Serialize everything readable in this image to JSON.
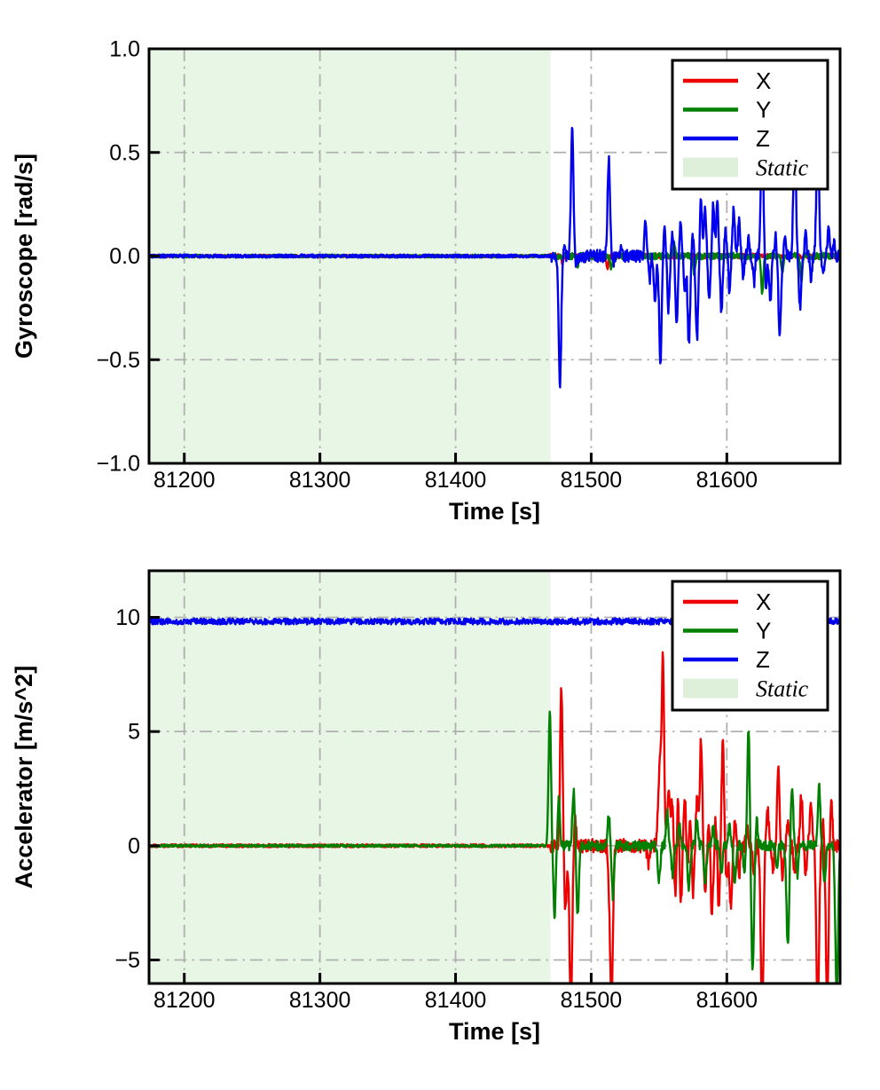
{
  "colors": {
    "x": "#ee0000",
    "y": "#008000",
    "z": "#0000ee",
    "static_fill": "#e8f6e5",
    "static_legend": "#dff0da",
    "grid": "#b0b0b0",
    "axis": "#000000",
    "background": "#ffffff"
  },
  "chart_data": [
    {
      "type": "line",
      "title": "",
      "xlabel": "Time [s]",
      "ylabel": "Gyroscope [rad/s]",
      "xlim": [
        81174,
        81683.5
      ],
      "ylim": [
        -1.0,
        1.0
      ],
      "grid": true,
      "grid_style": "dash-dot",
      "legend_position": "top-right",
      "xticks": [
        {
          "v": 81200,
          "label": "81200"
        },
        {
          "v": 81300,
          "label": "81300"
        },
        {
          "v": 81400,
          "label": "81400"
        },
        {
          "v": 81500,
          "label": "81500"
        },
        {
          "v": 81600,
          "label": "81600"
        }
      ],
      "yticks": [
        {
          "v": 1.0,
          "label": "1.0"
        },
        {
          "v": 0.5,
          "label": "0.5"
        },
        {
          "v": 0.0,
          "label": "0.0"
        },
        {
          "v": -0.5,
          "label": "−0.5"
        },
        {
          "v": -1.0,
          "label": "−1.0"
        }
      ],
      "static_region": {
        "start": 81174,
        "end": 81470,
        "label": "Static"
      },
      "legend": {
        "entries": [
          {
            "label": "X",
            "type": "line",
            "color_key": "x",
            "italic": false
          },
          {
            "label": "Y",
            "type": "line",
            "color_key": "y",
            "italic": false
          },
          {
            "label": "Z",
            "type": "line",
            "color_key": "z",
            "italic": false
          },
          {
            "label": "Static",
            "type": "patch",
            "color_key": "static_legend",
            "italic": true
          }
        ]
      },
      "series": [
        {
          "name": "X",
          "color_key": "x",
          "baseline": 0,
          "noise_static": 0.006,
          "noise_dynamic": 0.012,
          "spikes": [
            [
              81479,
              -0.04,
              0.6
            ],
            [
              81512,
              -0.07,
              0.7
            ]
          ]
        },
        {
          "name": "Y",
          "color_key": "y",
          "baseline": 0,
          "noise_static": 0.007,
          "noise_dynamic": 0.016,
          "spikes": [
            [
              81490,
              -0.05,
              0.7
            ],
            [
              81515,
              -0.06,
              0.7
            ],
            [
              81561,
              0.07,
              0.7
            ],
            [
              81576,
              -0.09,
              0.7
            ],
            [
              81626,
              -0.18,
              0.8
            ],
            [
              81641,
              -0.09,
              0.7
            ],
            [
              81655,
              -0.13,
              0.7
            ]
          ]
        },
        {
          "name": "Z",
          "color_key": "z",
          "baseline": 0,
          "noise_static": 0.008,
          "noise_dynamic": 0.03,
          "spikes": [
            [
              81477,
              -0.62,
              0.9
            ],
            [
              81480,
              0.07,
              0.7
            ],
            [
              81486,
              0.64,
              0.9
            ],
            [
              81489,
              -0.05,
              0.7
            ],
            [
              81513,
              0.47,
              0.9
            ],
            [
              81516,
              -0.04,
              0.6
            ],
            [
              81522,
              0.05,
              0.6
            ],
            [
              81540,
              0.17,
              0.8
            ],
            [
              81543,
              -0.12,
              0.7
            ],
            [
              81547,
              -0.22,
              0.8
            ],
            [
              81551,
              -0.51,
              0.9
            ],
            [
              81554,
              0.12,
              0.7
            ],
            [
              81557,
              -0.25,
              0.8
            ],
            [
              81560,
              0.1,
              0.7
            ],
            [
              81563,
              -0.35,
              0.8
            ],
            [
              81566,
              0.18,
              0.7
            ],
            [
              81569,
              -0.16,
              0.7
            ],
            [
              81572,
              -0.42,
              0.9
            ],
            [
              81575,
              0.1,
              0.7
            ],
            [
              81578,
              -0.39,
              0.9
            ],
            [
              81581,
              0.27,
              0.8
            ],
            [
              81584,
              0.24,
              0.8
            ],
            [
              81587,
              -0.21,
              0.8
            ],
            [
              81590,
              0.25,
              0.8
            ],
            [
              81593,
              0.26,
              0.8
            ],
            [
              81596,
              -0.28,
              0.8
            ],
            [
              81599,
              0.12,
              0.7
            ],
            [
              81602,
              -0.18,
              0.7
            ],
            [
              81605,
              0.22,
              0.8
            ],
            [
              81609,
              0.19,
              0.7
            ],
            [
              81612,
              -0.1,
              0.7
            ],
            [
              81616,
              0.09,
              0.7
            ],
            [
              81620,
              -0.13,
              0.7
            ],
            [
              81626,
              0.63,
              0.9
            ],
            [
              81629,
              -0.16,
              0.7
            ],
            [
              81632,
              -0.22,
              0.8
            ],
            [
              81636,
              0.1,
              0.7
            ],
            [
              81639,
              -0.4,
              0.9
            ],
            [
              81643,
              0.12,
              0.7
            ],
            [
              81650,
              0.65,
              0.9
            ],
            [
              81654,
              -0.25,
              0.8
            ],
            [
              81658,
              0.1,
              0.7
            ],
            [
              81662,
              -0.12,
              0.7
            ],
            [
              81667,
              0.68,
              0.9
            ],
            [
              81671,
              -0.1,
              0.7
            ],
            [
              81675,
              0.15,
              0.7
            ],
            [
              81679,
              0.07,
              0.7
            ]
          ]
        }
      ]
    },
    {
      "type": "line",
      "title": "",
      "xlabel": "Time [s]",
      "ylabel": "Accelerator [m/s^2]",
      "xlim": [
        81174,
        81683.5
      ],
      "ylim": [
        -6.03,
        12.04
      ],
      "grid": true,
      "grid_style": "dash-dot",
      "legend_position": "top-right",
      "xticks": [
        {
          "v": 81200,
          "label": "81200"
        },
        {
          "v": 81300,
          "label": "81300"
        },
        {
          "v": 81400,
          "label": "81400"
        },
        {
          "v": 81500,
          "label": "81500"
        },
        {
          "v": 81600,
          "label": "81600"
        }
      ],
      "yticks": [
        {
          "v": 10,
          "label": "10"
        },
        {
          "v": 5,
          "label": "5"
        },
        {
          "v": 0,
          "label": "0"
        },
        {
          "v": -5,
          "label": "−5"
        }
      ],
      "static_region": {
        "start": 81174,
        "end": 81470,
        "label": "Static"
      },
      "legend": {
        "entries": [
          {
            "label": "X",
            "type": "line",
            "color_key": "x",
            "italic": false
          },
          {
            "label": "Y",
            "type": "line",
            "color_key": "y",
            "italic": false
          },
          {
            "label": "Z",
            "type": "line",
            "color_key": "z",
            "italic": false
          },
          {
            "label": "Static",
            "type": "patch",
            "color_key": "static_legend",
            "italic": true
          }
        ]
      },
      "series": [
        {
          "name": "X",
          "color_key": "x",
          "baseline": 0,
          "noise_static": 0.07,
          "noise_dynamic": 0.3,
          "spikes": [
            [
              81478,
              6.9,
              0.9
            ],
            [
              81481,
              -3.0,
              0.9
            ],
            [
              81485,
              -7.2,
              1.0
            ],
            [
              81488,
              1.2,
              0.8
            ],
            [
              81513,
              -1.2,
              0.8
            ],
            [
              81515,
              -7.0,
              1.0
            ],
            [
              81542,
              -0.8,
              0.8
            ],
            [
              81551,
              3.8,
              1.4
            ],
            [
              81553,
              6.9,
              0.8
            ],
            [
              81557,
              2.3,
              1.0
            ],
            [
              81560,
              2.1,
              1.0
            ],
            [
              81562,
              -2.6,
              0.9
            ],
            [
              81564,
              2.3,
              0.9
            ],
            [
              81566,
              -2.7,
              0.9
            ],
            [
              81569,
              2.2,
              0.9
            ],
            [
              81571,
              -1.1,
              0.8
            ],
            [
              81573,
              1.6,
              0.8
            ],
            [
              81575,
              -2.1,
              0.9
            ],
            [
              81578,
              2.0,
              0.9
            ],
            [
              81581,
              4.7,
              0.9
            ],
            [
              81584,
              -1.9,
              0.9
            ],
            [
              81587,
              1.1,
              0.8
            ],
            [
              81589,
              -3.1,
              0.9
            ],
            [
              81592,
              1.3,
              0.8
            ],
            [
              81594,
              -2.9,
              0.9
            ],
            [
              81597,
              4.5,
              0.9
            ],
            [
              81600,
              -1.6,
              0.9
            ],
            [
              81603,
              -2.7,
              0.9
            ],
            [
              81606,
              1.1,
              0.8
            ],
            [
              81609,
              -1.3,
              0.8
            ],
            [
              81615,
              0.8,
              0.8
            ],
            [
              81620,
              -1.1,
              0.8
            ],
            [
              81626,
              -7.5,
              1.0
            ],
            [
              81630,
              1.6,
              0.9
            ],
            [
              81634,
              -1.1,
              0.8
            ],
            [
              81638,
              3.4,
              0.9
            ],
            [
              81641,
              -1.5,
              0.9
            ],
            [
              81645,
              1.2,
              0.8
            ],
            [
              81650,
              -1.1,
              0.8
            ],
            [
              81655,
              2.3,
              0.9
            ],
            [
              81658,
              -1.3,
              0.8
            ],
            [
              81662,
              1.9,
              0.9
            ],
            [
              81667,
              -7.5,
              1.0
            ],
            [
              81671,
              1.1,
              0.8
            ],
            [
              81674,
              -6.8,
              1.0
            ],
            [
              81677,
              2.0,
              0.9
            ]
          ]
        },
        {
          "name": "Y",
          "color_key": "y",
          "baseline": 0,
          "noise_static": 0.05,
          "noise_dynamic": 0.22,
          "spikes": [
            [
              81469.5,
              5.9,
              0.9
            ],
            [
              81473,
              -3.0,
              0.9
            ],
            [
              81476,
              2.0,
              0.8
            ],
            [
              81487,
              2.4,
              0.9
            ],
            [
              81490,
              -3.0,
              0.9
            ],
            [
              81513,
              1.4,
              0.8
            ],
            [
              81516,
              -2.2,
              0.9
            ],
            [
              81550,
              -1.5,
              0.9
            ],
            [
              81556,
              1.5,
              0.8
            ],
            [
              81560,
              -1.3,
              0.8
            ],
            [
              81565,
              0.9,
              0.8
            ],
            [
              81572,
              -1.9,
              0.9
            ],
            [
              81578,
              1.2,
              0.8
            ],
            [
              81584,
              -1.6,
              0.9
            ],
            [
              81590,
              0.9,
              0.8
            ],
            [
              81596,
              -1.1,
              0.8
            ],
            [
              81602,
              0.9,
              0.8
            ],
            [
              81606,
              -1.6,
              0.9
            ],
            [
              81613,
              -1.2,
              0.8
            ],
            [
              81616,
              5.2,
              0.9
            ],
            [
              81619,
              -5.4,
              1.0
            ],
            [
              81622,
              1.1,
              0.8
            ],
            [
              81637,
              -0.9,
              0.8
            ],
            [
              81645,
              -4.5,
              1.0
            ],
            [
              81648,
              2.7,
              0.9
            ],
            [
              81652,
              -1.3,
              0.8
            ],
            [
              81668,
              2.6,
              0.9
            ],
            [
              81672,
              -1.6,
              0.9
            ],
            [
              81681,
              -6.5,
              1.0
            ]
          ]
        },
        {
          "name": "Z",
          "color_key": "z",
          "baseline": 9.82,
          "noise_static": 0.13,
          "noise_dynamic": 0.14,
          "spikes": []
        }
      ]
    }
  ]
}
